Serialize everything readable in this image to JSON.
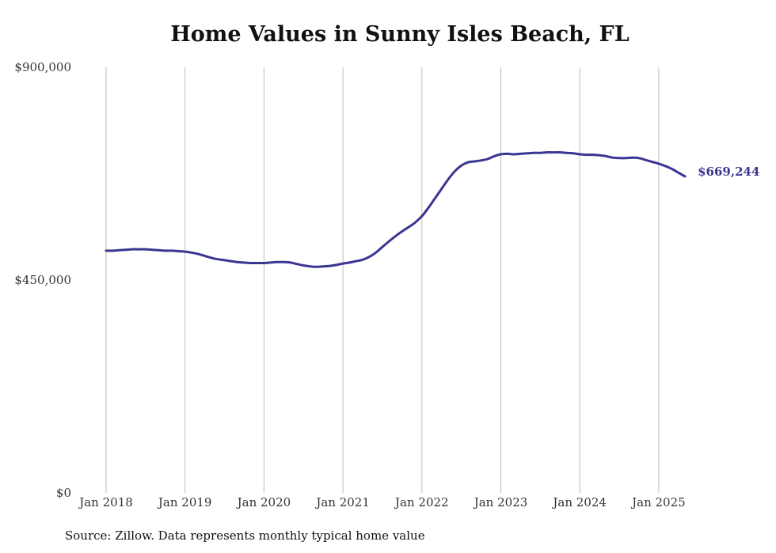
{
  "chart_data": {
    "type": "line",
    "title": "Home Values in Sunny Isles Beach, FL",
    "xlabel": "",
    "ylabel": "",
    "x_ticks": [
      "Jan 2018",
      "Jan 2019",
      "Jan 2020",
      "Jan 2021",
      "Jan 2022",
      "Jan 2023",
      "Jan 2024",
      "Jan 2025"
    ],
    "y_ticks": [
      "$0",
      "$450,000",
      "$900,000"
    ],
    "ylim": [
      0,
      900000
    ],
    "xlim": [
      "2018-01",
      "2025-06"
    ],
    "grid": "vertical",
    "line_color": "#3b3593",
    "end_label": "$669,244",
    "series": [
      {
        "points": [
          [
            "2018-01",
            512000
          ],
          [
            "2018-02",
            512000
          ],
          [
            "2018-03",
            513000
          ],
          [
            "2018-04",
            514000
          ],
          [
            "2018-05",
            515000
          ],
          [
            "2018-06",
            515000
          ],
          [
            "2018-07",
            515000
          ],
          [
            "2018-08",
            514000
          ],
          [
            "2018-09",
            513000
          ],
          [
            "2018-10",
            512000
          ],
          [
            "2018-11",
            512000
          ],
          [
            "2018-12",
            511000
          ],
          [
            "2019-01",
            510000
          ],
          [
            "2019-02",
            508000
          ],
          [
            "2019-03",
            505000
          ],
          [
            "2019-04",
            501000
          ],
          [
            "2019-05",
            497000
          ],
          [
            "2019-06",
            494000
          ],
          [
            "2019-07",
            492000
          ],
          [
            "2019-08",
            490000
          ],
          [
            "2019-09",
            488000
          ],
          [
            "2019-10",
            487000
          ],
          [
            "2019-11",
            486000
          ],
          [
            "2019-12",
            486000
          ],
          [
            "2020-01",
            486000
          ],
          [
            "2020-02",
            487000
          ],
          [
            "2020-03",
            488000
          ],
          [
            "2020-04",
            488000
          ],
          [
            "2020-05",
            487000
          ],
          [
            "2020-06",
            484000
          ],
          [
            "2020-07",
            481000
          ],
          [
            "2020-08",
            479000
          ],
          [
            "2020-09",
            478000
          ],
          [
            "2020-10",
            479000
          ],
          [
            "2020-11",
            480000
          ],
          [
            "2020-12",
            482000
          ],
          [
            "2021-01",
            485000
          ],
          [
            "2021-02",
            487000
          ],
          [
            "2021-03",
            490000
          ],
          [
            "2021-04",
            493000
          ],
          [
            "2021-05",
            499000
          ],
          [
            "2021-06",
            508000
          ],
          [
            "2021-07",
            520000
          ],
          [
            "2021-08",
            532000
          ],
          [
            "2021-09",
            543000
          ],
          [
            "2021-10",
            553000
          ],
          [
            "2021-11",
            562000
          ],
          [
            "2021-12",
            572000
          ],
          [
            "2022-01",
            585000
          ],
          [
            "2022-02",
            603000
          ],
          [
            "2022-03",
            623000
          ],
          [
            "2022-04",
            643000
          ],
          [
            "2022-05",
            663000
          ],
          [
            "2022-06",
            680000
          ],
          [
            "2022-07",
            692000
          ],
          [
            "2022-08",
            699000
          ],
          [
            "2022-09",
            701000
          ],
          [
            "2022-10",
            703000
          ],
          [
            "2022-11",
            706000
          ],
          [
            "2022-12",
            712000
          ],
          [
            "2023-01",
            716000
          ],
          [
            "2023-02",
            717000
          ],
          [
            "2023-03",
            716000
          ],
          [
            "2023-04",
            717000
          ],
          [
            "2023-05",
            718000
          ],
          [
            "2023-06",
            719000
          ],
          [
            "2023-07",
            719000
          ],
          [
            "2023-08",
            720000
          ],
          [
            "2023-09",
            720000
          ],
          [
            "2023-10",
            720000
          ],
          [
            "2023-11",
            719000
          ],
          [
            "2023-12",
            718000
          ],
          [
            "2024-01",
            716000
          ],
          [
            "2024-02",
            715000
          ],
          [
            "2024-03",
            715000
          ],
          [
            "2024-04",
            714000
          ],
          [
            "2024-05",
            712000
          ],
          [
            "2024-06",
            709000
          ],
          [
            "2024-07",
            708000
          ],
          [
            "2024-08",
            708000
          ],
          [
            "2024-09",
            709000
          ],
          [
            "2024-10",
            708000
          ],
          [
            "2024-11",
            704000
          ],
          [
            "2024-12",
            700000
          ],
          [
            "2025-01",
            696000
          ],
          [
            "2025-02",
            691000
          ],
          [
            "2025-03",
            685000
          ],
          [
            "2025-04",
            677000
          ],
          [
            "2025-05",
            669244
          ]
        ]
      }
    ]
  },
  "footer": {
    "source": "Source: Zillow. Data represents monthly typical home value"
  }
}
